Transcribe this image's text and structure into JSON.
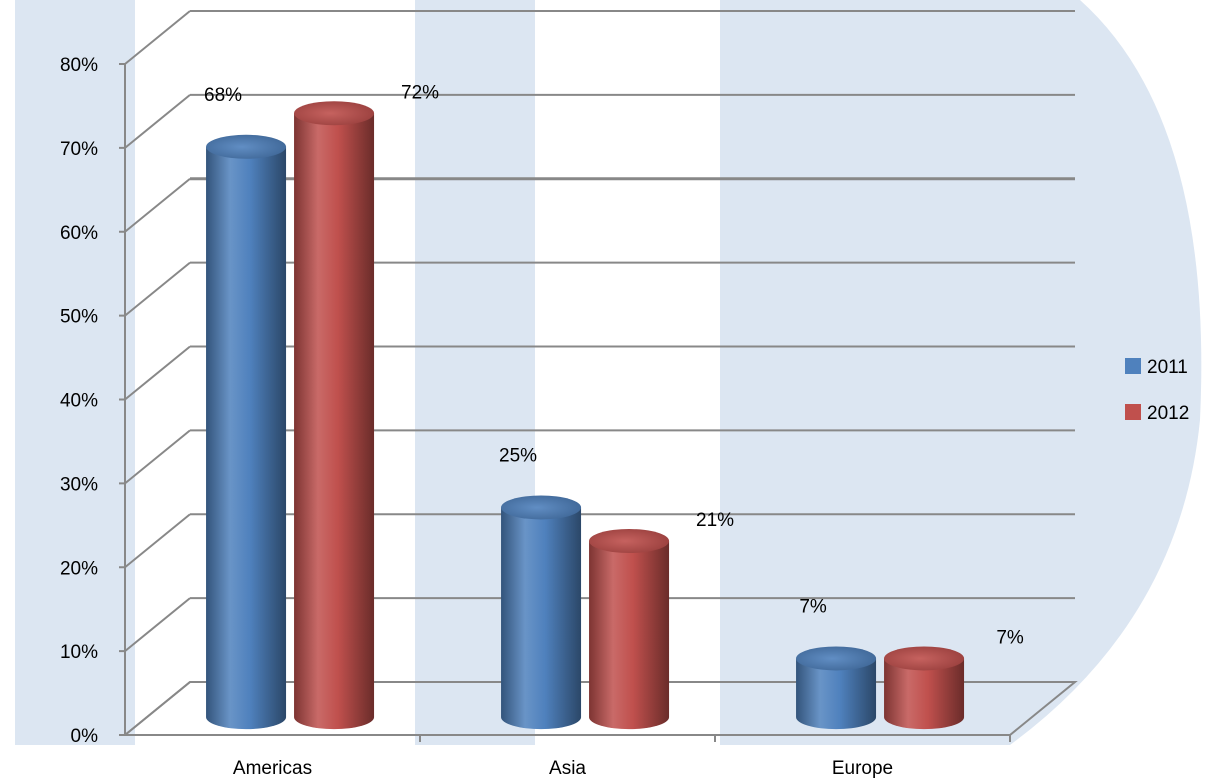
{
  "chart_data": {
    "type": "bar",
    "style": "3d-cylinder",
    "categories": [
      "Americas",
      "Asia",
      "Europe"
    ],
    "series": [
      {
        "name": "2011",
        "values": [
          68,
          25,
          7
        ],
        "color": "#4f81bd"
      },
      {
        "name": "2012",
        "values": [
          72,
          21,
          7
        ],
        "color": "#c0504d"
      }
    ],
    "data_labels": [
      [
        "68%",
        "25%",
        "7%"
      ],
      [
        "72%",
        "21%",
        "7%"
      ]
    ],
    "y_ticks": [
      "0%",
      "10%",
      "20%",
      "30%",
      "40%",
      "50%",
      "60%",
      "70%",
      "80%"
    ],
    "ylim": [
      0,
      80
    ],
    "grid": true,
    "legend": "right",
    "title": "",
    "xlabel": "",
    "ylabel": ""
  },
  "background_watermark_color": "#dce6f2"
}
